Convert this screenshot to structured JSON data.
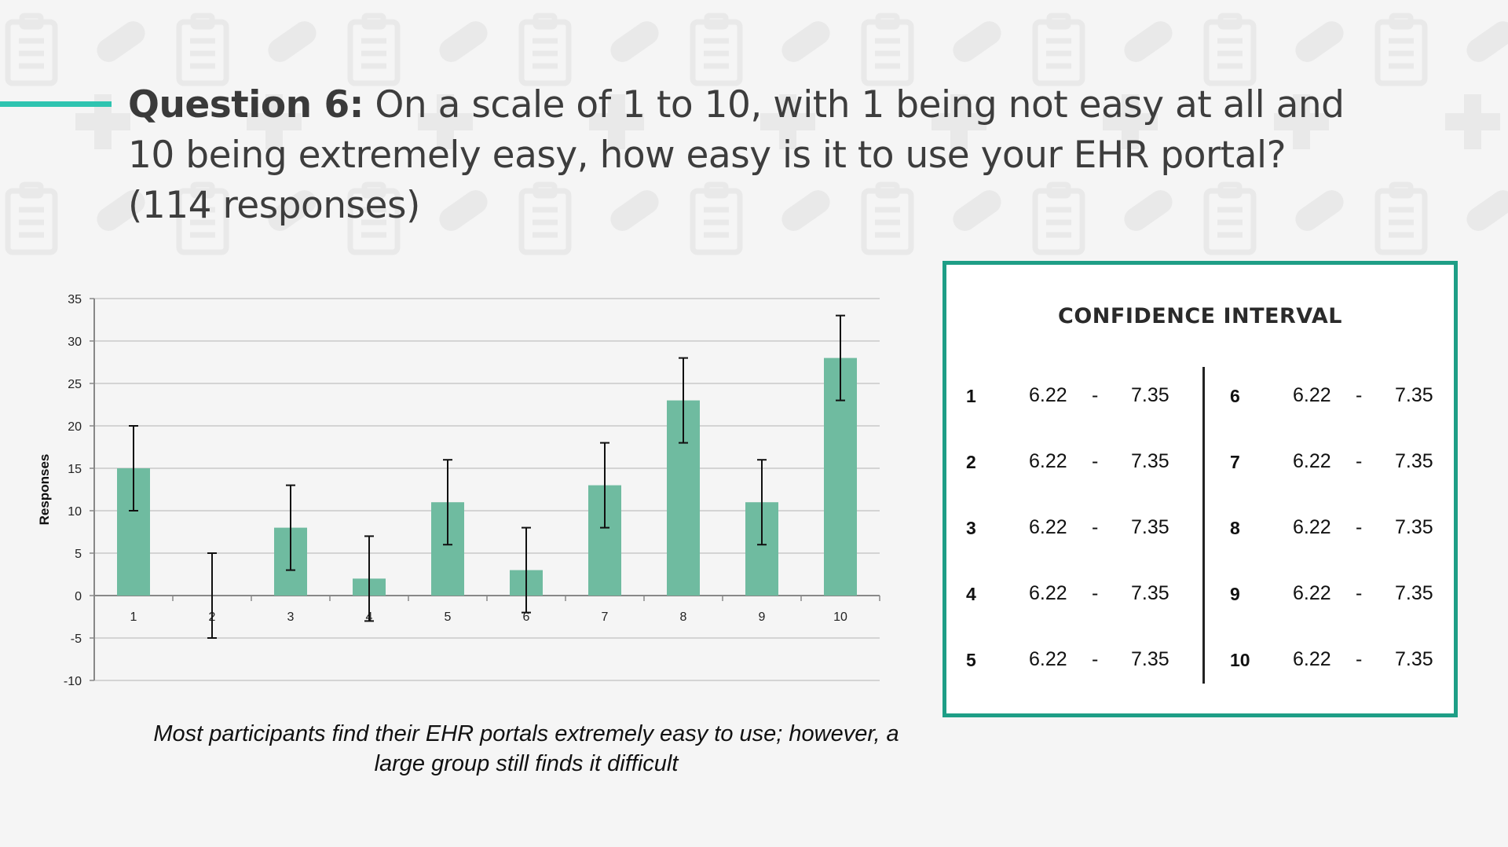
{
  "slide": {
    "title_bold": "Question 6:",
    "title_text": " On a scale of 1 to 10, with 1 being not easy at all and 10 being extremely easy, how easy is it to use your EHR portal? (114 responses)",
    "caption_line1": "Most participants find their EHR portals extremely easy to use; however, a",
    "caption_line2": "large group still finds it difficult",
    "colors": {
      "accent": "#2ec4b0",
      "bar": "#6fbba0",
      "box_border": "#1e9e86"
    }
  },
  "chart_data": {
    "type": "bar",
    "categories": [
      "1",
      "2",
      "3",
      "4",
      "5",
      "6",
      "7",
      "8",
      "9",
      "10"
    ],
    "values": [
      15,
      0,
      8,
      2,
      11,
      3,
      13,
      23,
      11,
      28
    ],
    "error_bars": {
      "plus_minus": 5
    },
    "ylabel": "Responses",
    "xlabel": "",
    "ylim": [
      -10,
      35
    ],
    "yticks": [
      "-10",
      "-5",
      "0",
      "5",
      "10",
      "15",
      "20",
      "25",
      "30",
      "35"
    ],
    "grid": true
  },
  "confidence_interval": {
    "title": "CONFIDENCE INTERVAL",
    "separator": "-",
    "rows": [
      {
        "index": "1",
        "low": "6.22",
        "high": "7.35"
      },
      {
        "index": "2",
        "low": "6.22",
        "high": "7.35"
      },
      {
        "index": "3",
        "low": "6.22",
        "high": "7.35"
      },
      {
        "index": "4",
        "low": "6.22",
        "high": "7.35"
      },
      {
        "index": "5",
        "low": "6.22",
        "high": "7.35"
      },
      {
        "index": "6",
        "low": "6.22",
        "high": "7.35"
      },
      {
        "index": "7",
        "low": "6.22",
        "high": "7.35"
      },
      {
        "index": "8",
        "low": "6.22",
        "high": "7.35"
      },
      {
        "index": "9",
        "low": "6.22",
        "high": "7.35"
      },
      {
        "index": "10",
        "low": "6.22",
        "high": "7.35"
      }
    ]
  }
}
